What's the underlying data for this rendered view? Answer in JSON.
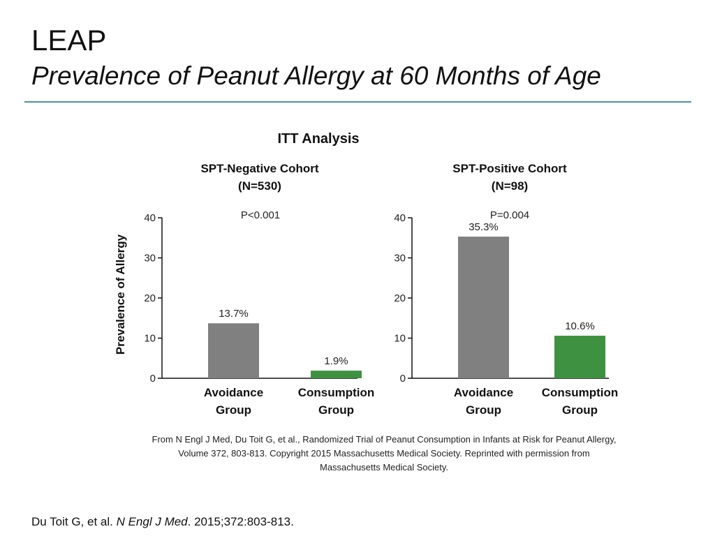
{
  "slide": {
    "title": "LEAP",
    "subtitle": "Prevalence of Peanut Allergy at 60 Months of Age"
  },
  "figure": {
    "heading": "ITT Analysis",
    "y_axis_label": "Prevalence of Allergy"
  },
  "chart_data": [
    {
      "type": "bar",
      "title_line1": "SPT-Negative Cohort",
      "title_line2": "(N=530)",
      "p_value": "P<0.001",
      "ylabel": "Prevalence of Allergy",
      "ylim": [
        0,
        40
      ],
      "yticks": [
        0,
        10,
        20,
        30,
        40
      ],
      "categories": [
        {
          "line1": "Avoidance",
          "line2": "Group"
        },
        {
          "line1": "Consumption",
          "line2": "Group"
        }
      ],
      "values": [
        13.7,
        1.9
      ],
      "labels": [
        "13.7%",
        "1.9%"
      ],
      "colors": [
        "#808080",
        "#3f9142"
      ]
    },
    {
      "type": "bar",
      "title_line1": "SPT-Positive Cohort",
      "title_line2": "(N=98)",
      "p_value": "P=0.004",
      "ylabel": "",
      "ylim": [
        0,
        40
      ],
      "yticks": [
        0,
        10,
        20,
        30,
        40
      ],
      "categories": [
        {
          "line1": "Avoidance",
          "line2": "Group"
        },
        {
          "line1": "Consumption",
          "line2": "Group"
        }
      ],
      "values": [
        35.3,
        10.6
      ],
      "labels": [
        "35.3%",
        "10.6%"
      ],
      "colors": [
        "#808080",
        "#3f9142"
      ]
    }
  ],
  "source_caption": {
    "line1": "From N Engl J Med, Du Toit G, et al., Randomized Trial of Peanut Consumption in Infants at Risk for Peanut Allergy,",
    "line2": "Volume 372, 803-813. Copyright 2015 Massachusetts Medical Society. Reprinted with permission from",
    "line3": "Massachusetts Medical Society."
  },
  "citation": {
    "authors": "Du Toit G, et al.",
    "journal": "N Engl J Med",
    "details": ". 2015;372:803-813."
  }
}
